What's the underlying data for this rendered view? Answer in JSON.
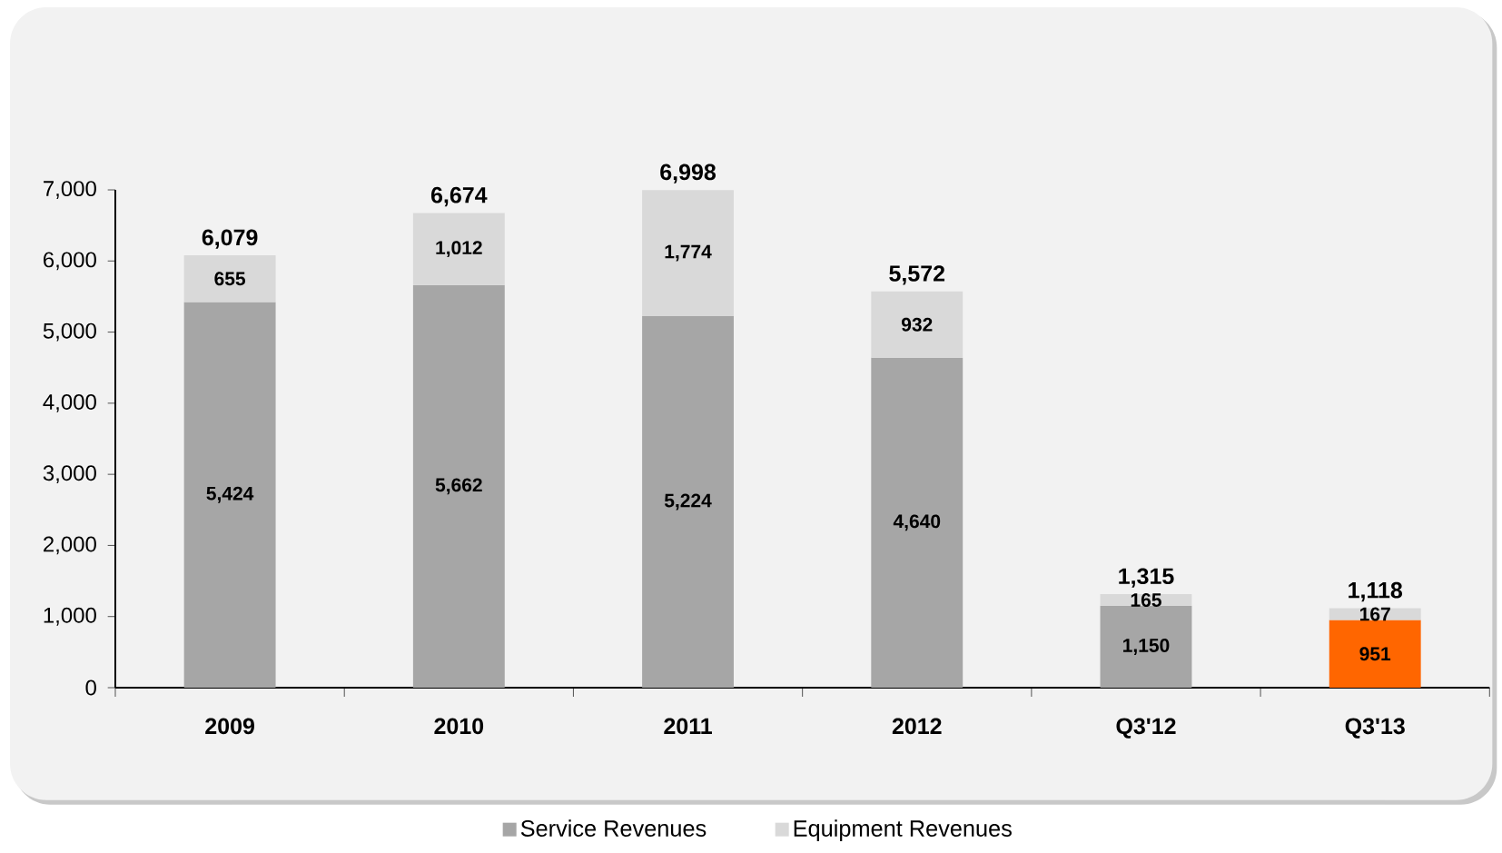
{
  "chart_data": {
    "type": "bar",
    "stacked": true,
    "categories": [
      "2009",
      "2010",
      "2011",
      "2012",
      "Q3'12",
      "Q3'13"
    ],
    "series": [
      {
        "name": "Service Revenues",
        "colors": [
          "#a6a6a6",
          "#a6a6a6",
          "#a6a6a6",
          "#a6a6a6",
          "#a6a6a6",
          "#ff6600"
        ],
        "values": [
          5424,
          5662,
          5224,
          4640,
          1150,
          951
        ],
        "value_labels": [
          "5,424",
          "5,662",
          "5,224",
          "4,640",
          "1,150",
          "951"
        ]
      },
      {
        "name": "Equipment Revenues",
        "color": "#d9d9d9",
        "values": [
          655,
          1012,
          1774,
          932,
          165,
          167
        ],
        "value_labels": [
          "655",
          "1,012",
          "1,774",
          "932",
          "165",
          "167"
        ]
      }
    ],
    "totals": [
      "6,079",
      "6,674",
      "6,998",
      "5,572",
      "1,315",
      "1,118"
    ],
    "ylim": [
      0,
      7000
    ],
    "yticks": [
      0,
      {
        "value": 1000,
        "label": "1,000"
      },
      {
        "value": 2000,
        "label": "2,000"
      },
      {
        "value": 3000,
        "label": "3,000"
      },
      {
        "value": 4000,
        "label": "4,000"
      },
      {
        "value": 5000,
        "label": "5,000"
      },
      {
        "value": 6000,
        "label": "6,000"
      },
      {
        "value": 7000,
        "label": "7,000"
      }
    ],
    "legend": "bottom"
  }
}
